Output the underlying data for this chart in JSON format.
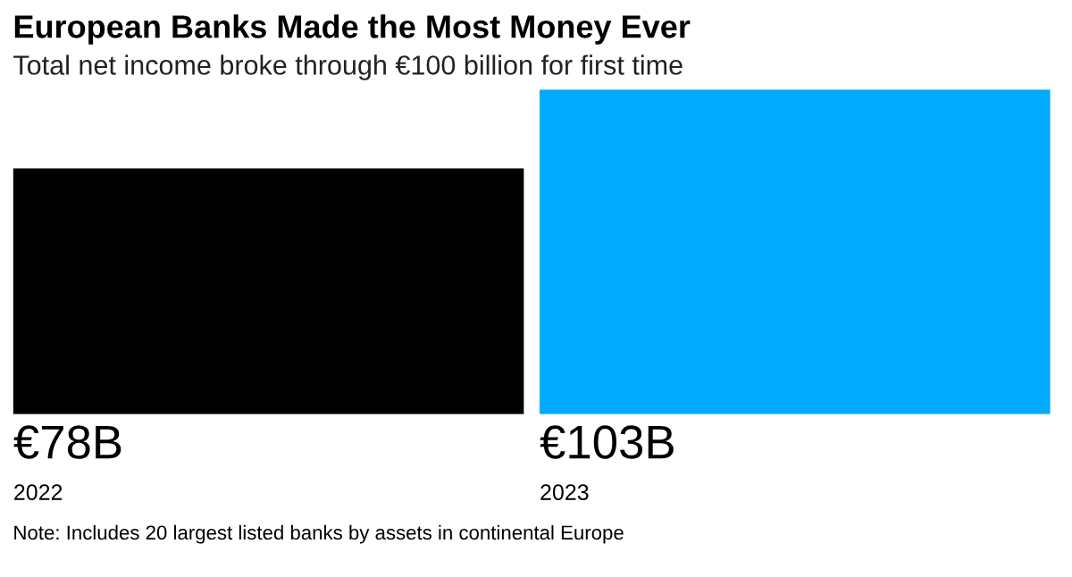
{
  "chart_data": {
    "type": "bar",
    "title": "European Banks Made the Most Money Ever",
    "subtitle": "Total net income broke through €100 billion for first time",
    "categories": [
      "2022",
      "2023"
    ],
    "values": [
      78,
      103
    ],
    "colors": [
      "#000000",
      "#00aaff"
    ],
    "value_labels": [
      "€78B",
      "€103B"
    ],
    "annotations": [
      "Note: Includes 20 largest listed banks by assets in continental Europe"
    ]
  }
}
